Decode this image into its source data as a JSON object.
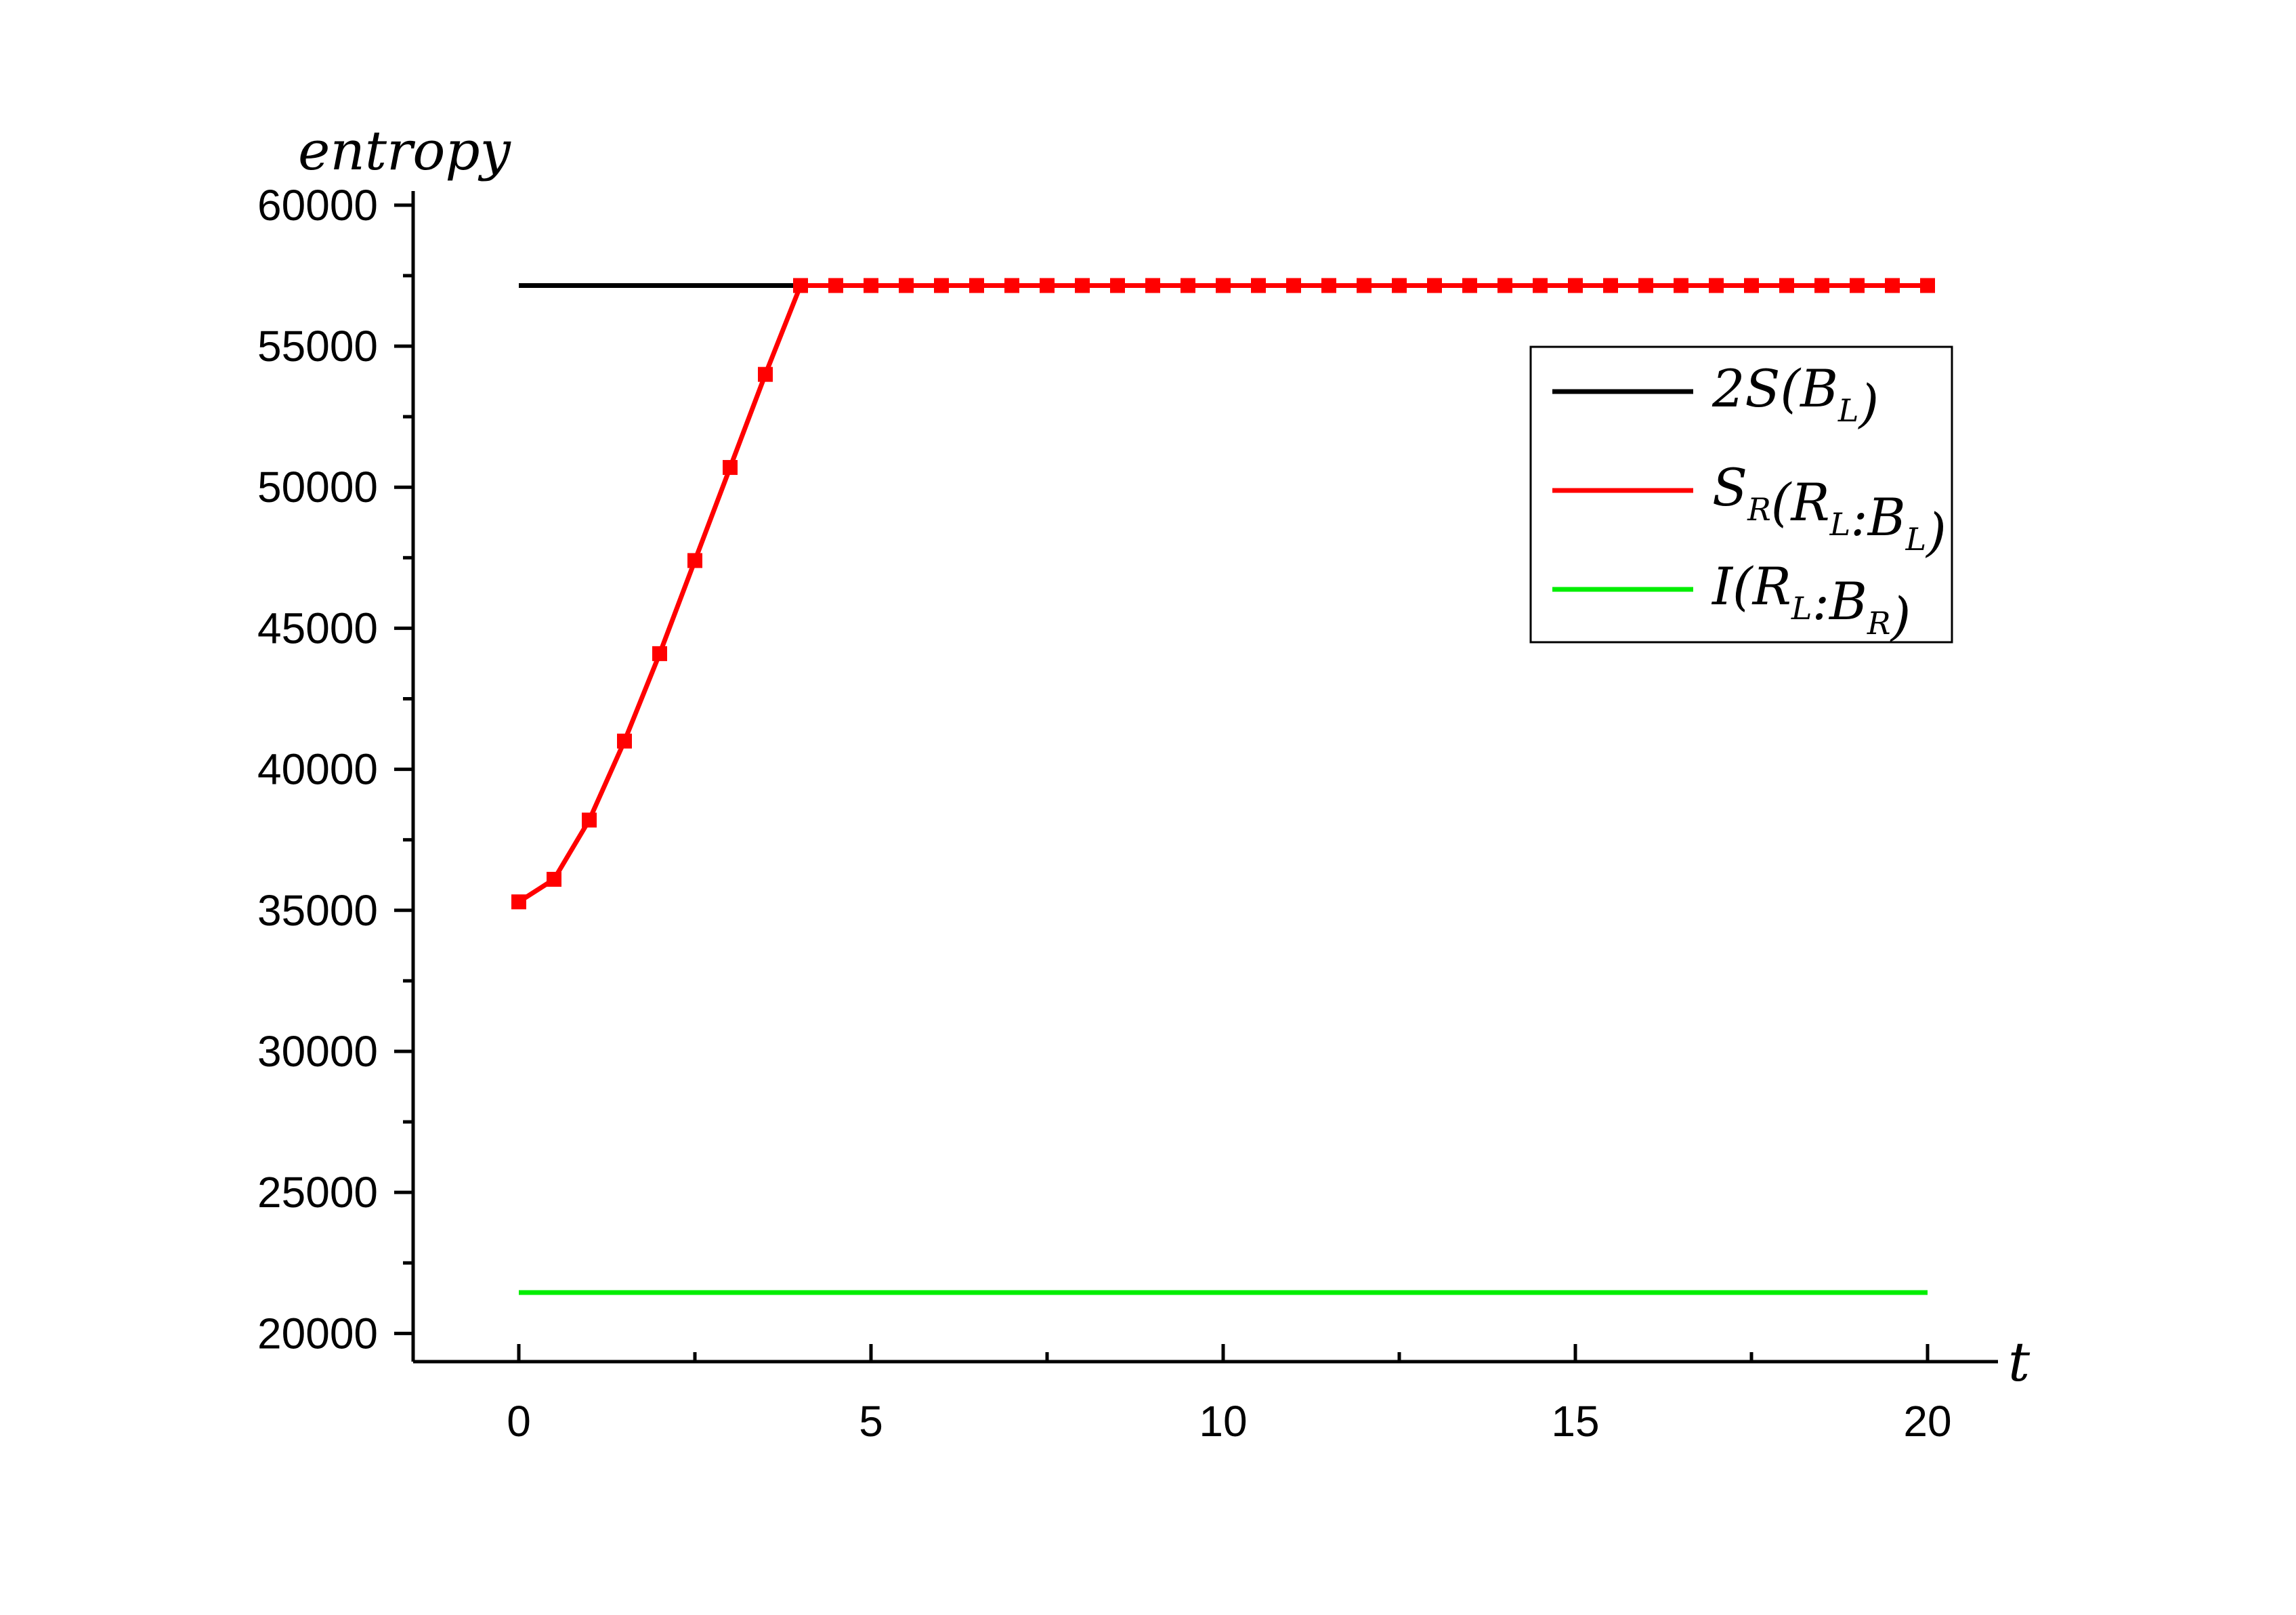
{
  "chart_data": {
    "type": "line",
    "xlabel": "t",
    "ylabel": "entropy",
    "xlim": [
      -1.5,
      21
    ],
    "ylim": [
      19000,
      60500
    ],
    "x_ticks": [
      0,
      5,
      10,
      15,
      20
    ],
    "x_tick_labels": [
      "0",
      "5",
      "10",
      "15",
      "20"
    ],
    "y_ticks": [
      20000,
      25000,
      30000,
      35000,
      40000,
      45000,
      50000,
      55000,
      60000
    ],
    "y_tick_labels": [
      "20000",
      "25000",
      "30000",
      "35000",
      "40000",
      "45000",
      "50000",
      "55000",
      "60000"
    ],
    "grid": false,
    "legend_position": "top-right",
    "series": [
      {
        "name": "2S(B_L)",
        "legend_parts": [
          [
            "2S(B",
            ""
          ],
          [
            "L",
            "sub"
          ],
          [
            ")",
            ""
          ]
        ],
        "color": "#000000",
        "markers": false,
        "x": [
          0,
          20
        ],
        "y": [
          57150,
          57150
        ]
      },
      {
        "name": "S_R(R_L:B_L)",
        "legend_parts": [
          [
            "S",
            ""
          ],
          [
            "R",
            "sub"
          ],
          [
            "(R",
            ""
          ],
          [
            "L",
            "sub"
          ],
          [
            ":B",
            ""
          ],
          [
            "L",
            "sub"
          ],
          [
            ")",
            ""
          ]
        ],
        "color": "#ff0000",
        "markers": true,
        "x": [
          0,
          0.5,
          1,
          1.5,
          2,
          2.5,
          3,
          3.5,
          4,
          4.5,
          5,
          5.5,
          6,
          6.5,
          7,
          7.5,
          8,
          8.5,
          9,
          9.5,
          10,
          10.5,
          11,
          11.5,
          12,
          12.5,
          13,
          13.5,
          14,
          14.5,
          15,
          15.5,
          16,
          16.5,
          17,
          17.5,
          18,
          18.5,
          19,
          19.5,
          20
        ],
        "y": [
          35300,
          36100,
          38200,
          41000,
          44100,
          47400,
          50700,
          54000,
          57150,
          57150,
          57150,
          57150,
          57150,
          57150,
          57150,
          57150,
          57150,
          57150,
          57150,
          57150,
          57150,
          57150,
          57150,
          57150,
          57150,
          57150,
          57150,
          57150,
          57150,
          57150,
          57150,
          57150,
          57150,
          57150,
          57150,
          57150,
          57150,
          57150,
          57150,
          57150,
          57150
        ]
      },
      {
        "name": "I(R_L:B_R)",
        "legend_parts": [
          [
            "I(R",
            ""
          ],
          [
            "L",
            "sub"
          ],
          [
            ":B",
            ""
          ],
          [
            "R",
            "sub"
          ],
          [
            ")",
            ""
          ]
        ],
        "color": "#00ee00",
        "markers": false,
        "x": [
          0,
          20
        ],
        "y": [
          21450,
          21450
        ]
      }
    ]
  }
}
